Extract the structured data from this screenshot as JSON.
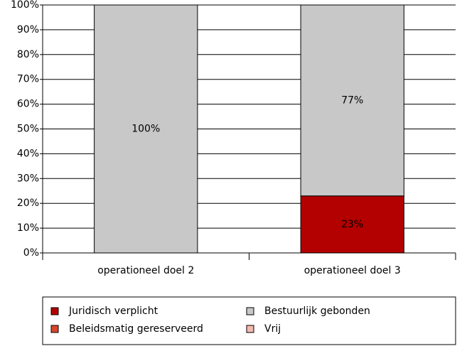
{
  "chart_data": {
    "type": "stacked_bar",
    "categories": [
      "operationeel doel 2",
      "operationeel doel 3"
    ],
    "series": [
      {
        "name": "Juridisch verplicht",
        "color": "#b30000",
        "values": [
          0,
          23
        ],
        "value_labels": [
          null,
          "23%"
        ]
      },
      {
        "name": "Beleidsmatig gereserveerd",
        "color": "#d9472b",
        "values": [
          0,
          0
        ],
        "value_labels": [
          null,
          null
        ]
      },
      {
        "name": "Bestuurlijk gebonden",
        "color": "#c8c8c8",
        "values": [
          100,
          77
        ],
        "value_labels": [
          "100%",
          "77%"
        ]
      },
      {
        "name": "Vrij",
        "color": "#f4b8b0",
        "values": [
          0,
          0
        ],
        "value_labels": [
          null,
          null
        ]
      }
    ],
    "ylim": [
      0,
      100
    ],
    "yticks": [
      {
        "value": 0,
        "label": "0%"
      },
      {
        "value": 10,
        "label": "10%"
      },
      {
        "value": 20,
        "label": "20%"
      },
      {
        "value": 30,
        "label": "30%"
      },
      {
        "value": 40,
        "label": "40%"
      },
      {
        "value": 50,
        "label": "50%"
      },
      {
        "value": 60,
        "label": "60%"
      },
      {
        "value": 70,
        "label": "70%"
      },
      {
        "value": 80,
        "label": "80%"
      },
      {
        "value": 90,
        "label": "90%"
      },
      {
        "value": 100,
        "label": "100%"
      }
    ],
    "grid": true
  }
}
